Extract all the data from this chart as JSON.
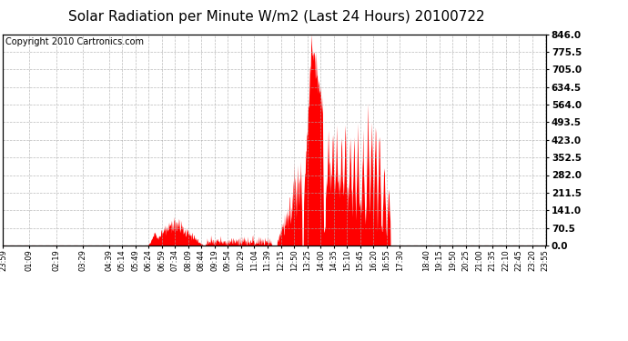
{
  "title": "Solar Radiation per Minute W/m2 (Last 24 Hours) 20100722",
  "copyright": "Copyright 2010 Cartronics.com",
  "ylabel_right": [
    "0.0",
    "70.5",
    "141.0",
    "211.5",
    "282.0",
    "352.5",
    "423.0",
    "493.5",
    "564.0",
    "634.5",
    "705.0",
    "775.5",
    "846.0"
  ],
  "ymax": 846.0,
  "ymin": 0.0,
  "yticks": [
    0.0,
    70.5,
    141.0,
    211.5,
    282.0,
    352.5,
    423.0,
    493.5,
    564.0,
    634.5,
    705.0,
    775.5,
    846.0
  ],
  "x_labels": [
    "23:59",
    "01:09",
    "02:19",
    "03:29",
    "04:39",
    "05:14",
    "05:49",
    "06:24",
    "06:59",
    "07:34",
    "08:09",
    "08:44",
    "09:19",
    "09:54",
    "10:29",
    "11:04",
    "11:39",
    "12:15",
    "12:50",
    "13:25",
    "14:00",
    "14:35",
    "15:10",
    "15:45",
    "16:20",
    "16:55",
    "17:30",
    "18:40",
    "19:15",
    "19:50",
    "20:25",
    "21:00",
    "21:35",
    "22:10",
    "22:45",
    "23:20",
    "23:55"
  ],
  "fill_color": "#FF0000",
  "line_color": "#FF0000",
  "dashed_line_color": "#FF0000",
  "background_color": "#FFFFFF",
  "grid_color": "#AAAAAA",
  "title_fontsize": 11,
  "copyright_fontsize": 7
}
